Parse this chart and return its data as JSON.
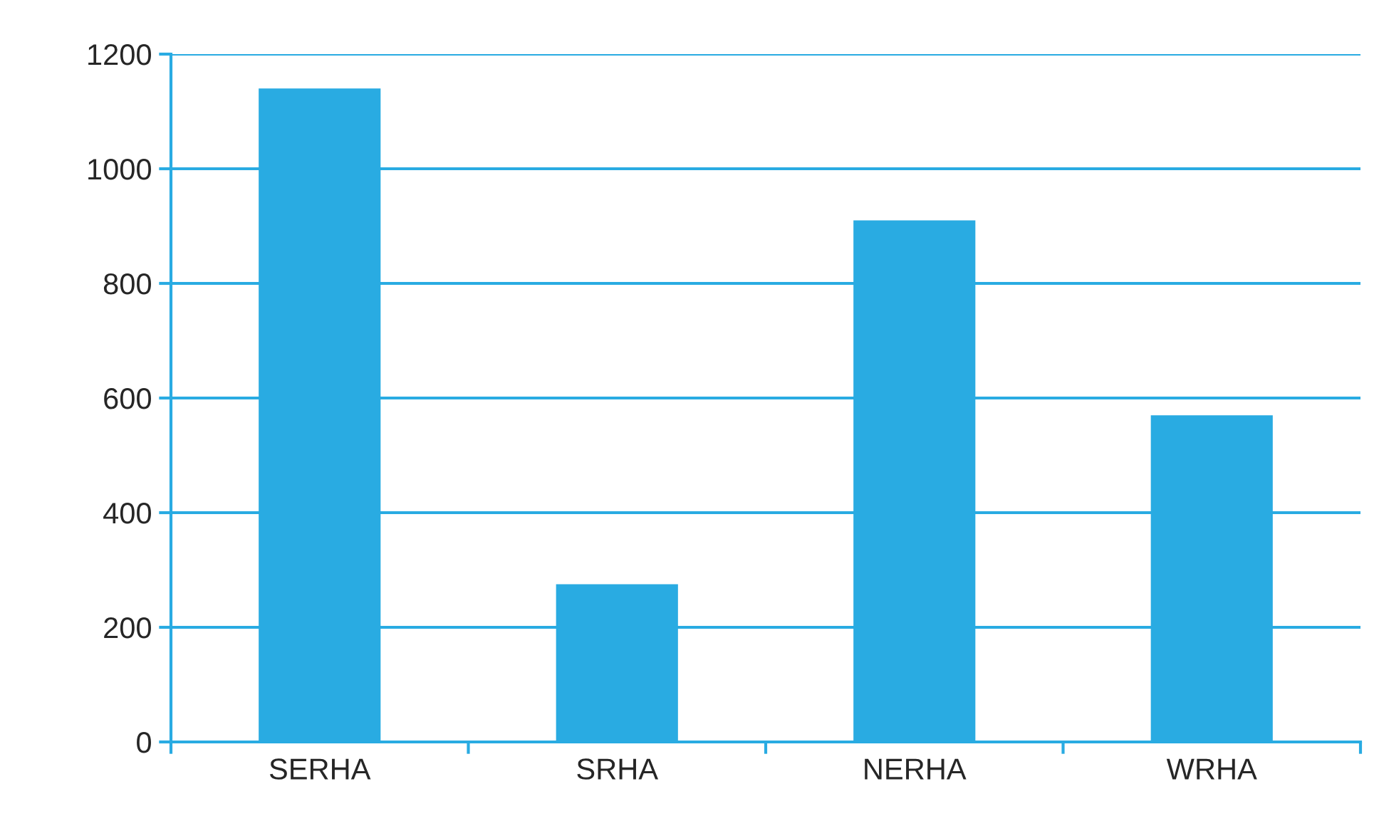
{
  "chart_data": {
    "type": "bar",
    "categories": [
      "SERHA",
      "SRHA",
      "NERHA",
      "WRHA"
    ],
    "values": [
      1140,
      275,
      910,
      570
    ],
    "color": "#29abe2",
    "ylim": [
      0,
      1200
    ],
    "yticks": [
      0,
      200,
      400,
      600,
      800,
      1000,
      1200
    ],
    "grid": "y"
  }
}
